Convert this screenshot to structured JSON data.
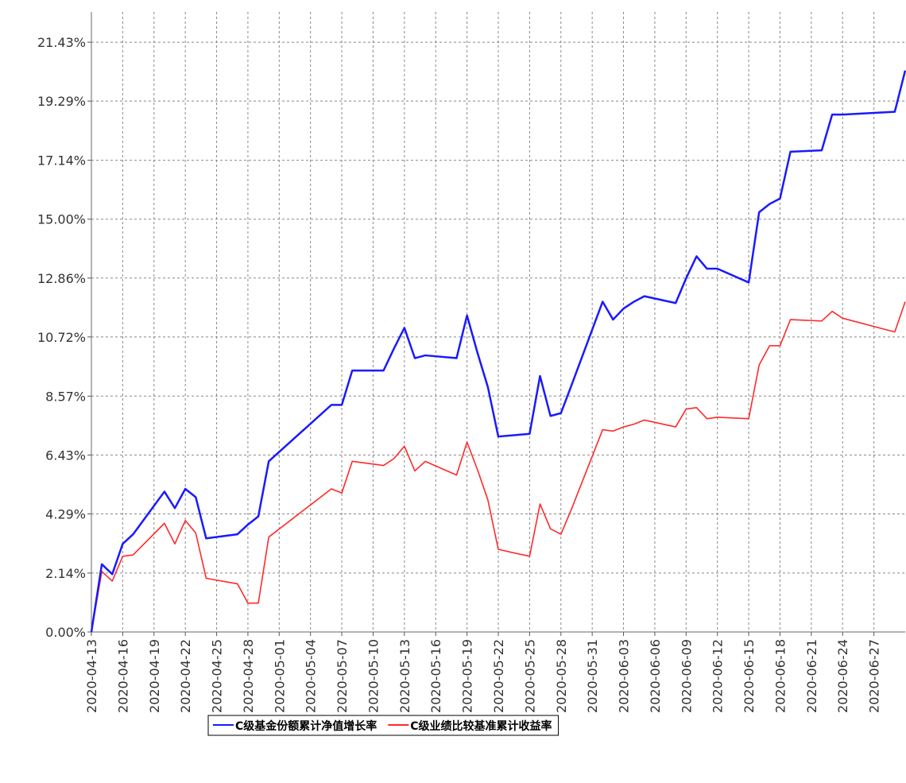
{
  "chart_data": {
    "type": "line",
    "x": [
      "2020-04-13",
      "2020-04-14",
      "2020-04-15",
      "2020-04-16",
      "2020-04-17",
      "2020-04-20",
      "2020-04-21",
      "2020-04-22",
      "2020-04-23",
      "2020-04-24",
      "2020-04-27",
      "2020-04-28",
      "2020-04-29",
      "2020-04-30",
      "2020-05-06",
      "2020-05-07",
      "2020-05-08",
      "2020-05-11",
      "2020-05-12",
      "2020-05-13",
      "2020-05-14",
      "2020-05-15",
      "2020-05-18",
      "2020-05-19",
      "2020-05-20",
      "2020-05-21",
      "2020-05-22",
      "2020-05-25",
      "2020-05-26",
      "2020-05-27",
      "2020-05-28",
      "2020-05-29",
      "2020-06-01",
      "2020-06-02",
      "2020-06-03",
      "2020-06-04",
      "2020-06-05",
      "2020-06-08",
      "2020-06-09",
      "2020-06-10",
      "2020-06-11",
      "2020-06-12",
      "2020-06-15",
      "2020-06-16",
      "2020-06-17",
      "2020-06-18",
      "2020-06-19",
      "2020-06-22",
      "2020-06-23",
      "2020-06-24",
      "2020-06-29",
      "2020-06-30"
    ],
    "series": [
      {
        "name": "C级基金份额累计净值增长率",
        "color": "#1a1aff",
        "values": [
          0,
          2.46,
          2.1,
          3.2,
          3.55,
          5.1,
          4.5,
          5.2,
          4.9,
          3.4,
          3.55,
          3.9,
          4.2,
          6.2,
          8.25,
          8.25,
          9.5,
          9.5,
          10.3,
          11.05,
          9.95,
          10.05,
          9.95,
          11.5,
          10.15,
          8.9,
          7.1,
          7.2,
          9.3,
          7.85,
          7.95,
          8.95,
          12.0,
          11.35,
          11.75,
          12.0,
          12.2,
          11.95,
          12.85,
          13.65,
          13.2,
          13.2,
          12.7,
          15.25,
          15.55,
          15.75,
          17.45,
          17.5,
          18.8,
          18.8,
          18.9,
          20.4
        ]
      },
      {
        "name": "C级业绩比较基准累计收益率",
        "color": "#ff2a2a",
        "values": [
          0,
          2.2,
          1.85,
          2.75,
          2.8,
          3.95,
          3.2,
          4.05,
          3.6,
          1.95,
          1.75,
          1.05,
          1.05,
          3.45,
          5.2,
          5.05,
          6.2,
          6.05,
          6.3,
          6.75,
          5.85,
          6.2,
          5.7,
          6.9,
          5.9,
          4.8,
          3.0,
          2.75,
          4.65,
          3.75,
          3.55,
          4.45,
          7.35,
          7.3,
          7.45,
          7.55,
          7.7,
          7.45,
          8.1,
          8.15,
          7.75,
          7.8,
          7.75,
          9.7,
          10.4,
          10.4,
          11.35,
          11.3,
          11.65,
          11.4,
          10.9,
          12.0
        ]
      }
    ],
    "xlim": [
      "2020-04-13",
      "2020-06-30"
    ],
    "xticks": [
      "2020-04-13",
      "2020-04-16",
      "2020-04-19",
      "2020-04-22",
      "2020-04-25",
      "2020-04-28",
      "2020-05-01",
      "2020-05-04",
      "2020-05-07",
      "2020-05-10",
      "2020-05-13",
      "2020-05-16",
      "2020-05-19",
      "2020-05-22",
      "2020-05-25",
      "2020-05-28",
      "2020-05-31",
      "2020-06-03",
      "2020-06-06",
      "2020-06-09",
      "2020-06-12",
      "2020-06-15",
      "2020-06-18",
      "2020-06-21",
      "2020-06-24",
      "2020-06-27"
    ],
    "ylim": [
      0,
      22.53
    ],
    "yticks": [
      {
        "value": 0,
        "label": "0.00%"
      },
      {
        "value": 2.14,
        "label": "2.14%"
      },
      {
        "value": 4.29,
        "label": "4.29%"
      },
      {
        "value": 6.43,
        "label": "6.43%"
      },
      {
        "value": 8.57,
        "label": "8.57%"
      },
      {
        "value": 10.72,
        "label": "10.72%"
      },
      {
        "value": 12.86,
        "label": "12.86%"
      },
      {
        "value": 15.0,
        "label": "15.00%"
      },
      {
        "value": 17.14,
        "label": "17.14%"
      },
      {
        "value": 19.29,
        "label": "19.29%"
      },
      {
        "value": 21.43,
        "label": "21.43%"
      }
    ],
    "grid": true,
    "legend": "bottom"
  }
}
